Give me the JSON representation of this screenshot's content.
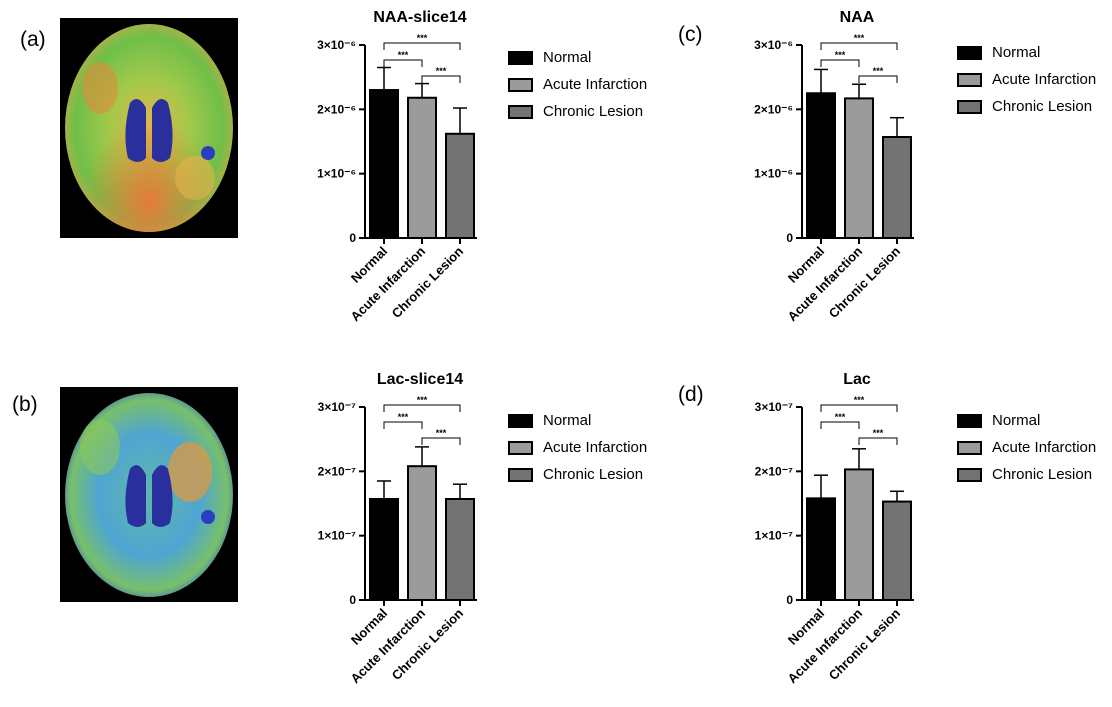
{
  "panels": {
    "a": {
      "label": "(a)"
    },
    "b": {
      "label": "(b)"
    },
    "c": {
      "label": "(c)"
    },
    "d": {
      "label": "(d)"
    }
  },
  "legend": {
    "items": [
      {
        "label": "Normal",
        "color": "#000000"
      },
      {
        "label": "Acute Infarction",
        "color": "#9b9b9b"
      },
      {
        "label": "Chronic Lesion",
        "color": "#737373"
      }
    ]
  },
  "chart_data": [
    {
      "id": "naa-slice14",
      "type": "bar",
      "title": "NAA-slice14",
      "categories": [
        "Normal",
        "Acute Infarction",
        "Chronic Lesion"
      ],
      "values": [
        2.3e-06,
        2.18e-06,
        1.62e-06
      ],
      "errors": [
        3.5e-07,
        2.2e-07,
        4e-07
      ],
      "ylim": [
        0,
        3e-06
      ],
      "ticks": [
        {
          "v": 0,
          "label": "0"
        },
        {
          "v": 1e-06,
          "label": "1×10⁻⁶"
        },
        {
          "v": 2e-06,
          "label": "2×10⁻⁶"
        },
        {
          "v": 3e-06,
          "label": "3×10⁻⁶"
        }
      ],
      "significance": [
        {
          "from": 0,
          "to": 1,
          "label": "***"
        },
        {
          "from": 1,
          "to": 2,
          "label": "***"
        },
        {
          "from": 0,
          "to": 2,
          "label": "***"
        }
      ],
      "colors": [
        "#000000",
        "#9b9b9b",
        "#737373"
      ]
    },
    {
      "id": "lac-slice14",
      "type": "bar",
      "title": "Lac-slice14",
      "categories": [
        "Normal",
        "Acute Infarction",
        "Chronic Lesion"
      ],
      "values": [
        1.57e-07,
        2.08e-07,
        1.57e-07
      ],
      "errors": [
        2.8e-08,
        3e-08,
        2.3e-08
      ],
      "ylim": [
        0,
        3e-07
      ],
      "ticks": [
        {
          "v": 0,
          "label": "0"
        },
        {
          "v": 1e-07,
          "label": "1×10⁻⁷"
        },
        {
          "v": 2e-07,
          "label": "2×10⁻⁷"
        },
        {
          "v": 3e-07,
          "label": "3×10⁻⁷"
        }
      ],
      "significance": [
        {
          "from": 0,
          "to": 1,
          "label": "***"
        },
        {
          "from": 1,
          "to": 2,
          "label": "***"
        },
        {
          "from": 0,
          "to": 2,
          "label": "***"
        }
      ],
      "colors": [
        "#000000",
        "#9b9b9b",
        "#737373"
      ]
    },
    {
      "id": "naa",
      "type": "bar",
      "title": "NAA",
      "categories": [
        "Normal",
        "Acute Infarction",
        "Chronic Lesion"
      ],
      "values": [
        2.25e-06,
        2.17e-06,
        1.57e-06
      ],
      "errors": [
        3.7e-07,
        2.2e-07,
        3e-07
      ],
      "ylim": [
        0,
        3e-06
      ],
      "ticks": [
        {
          "v": 0,
          "label": "0"
        },
        {
          "v": 1e-06,
          "label": "1×10⁻⁶"
        },
        {
          "v": 2e-06,
          "label": "2×10⁻⁶"
        },
        {
          "v": 3e-06,
          "label": "3×10⁻⁶"
        }
      ],
      "significance": [
        {
          "from": 0,
          "to": 1,
          "label": "***"
        },
        {
          "from": 1,
          "to": 2,
          "label": "***"
        },
        {
          "from": 0,
          "to": 2,
          "label": "***"
        }
      ],
      "colors": [
        "#000000",
        "#9b9b9b",
        "#737373"
      ]
    },
    {
      "id": "lac",
      "type": "bar",
      "title": "Lac",
      "categories": [
        "Normal",
        "Acute Infarction",
        "Chronic Lesion"
      ],
      "values": [
        1.58e-07,
        2.03e-07,
        1.53e-07
      ],
      "errors": [
        3.6e-08,
        3.2e-08,
        1.6e-08
      ],
      "ylim": [
        0,
        3e-07
      ],
      "ticks": [
        {
          "v": 0,
          "label": "0"
        },
        {
          "v": 1e-07,
          "label": "1×10⁻⁷"
        },
        {
          "v": 2e-07,
          "label": "2×10⁻⁷"
        },
        {
          "v": 3e-07,
          "label": "3×10⁻⁷"
        }
      ],
      "significance": [
        {
          "from": 0,
          "to": 1,
          "label": "***"
        },
        {
          "from": 1,
          "to": 2,
          "label": "***"
        },
        {
          "from": 0,
          "to": 2,
          "label": "***"
        }
      ],
      "colors": [
        "#000000",
        "#9b9b9b",
        "#737373"
      ]
    }
  ]
}
